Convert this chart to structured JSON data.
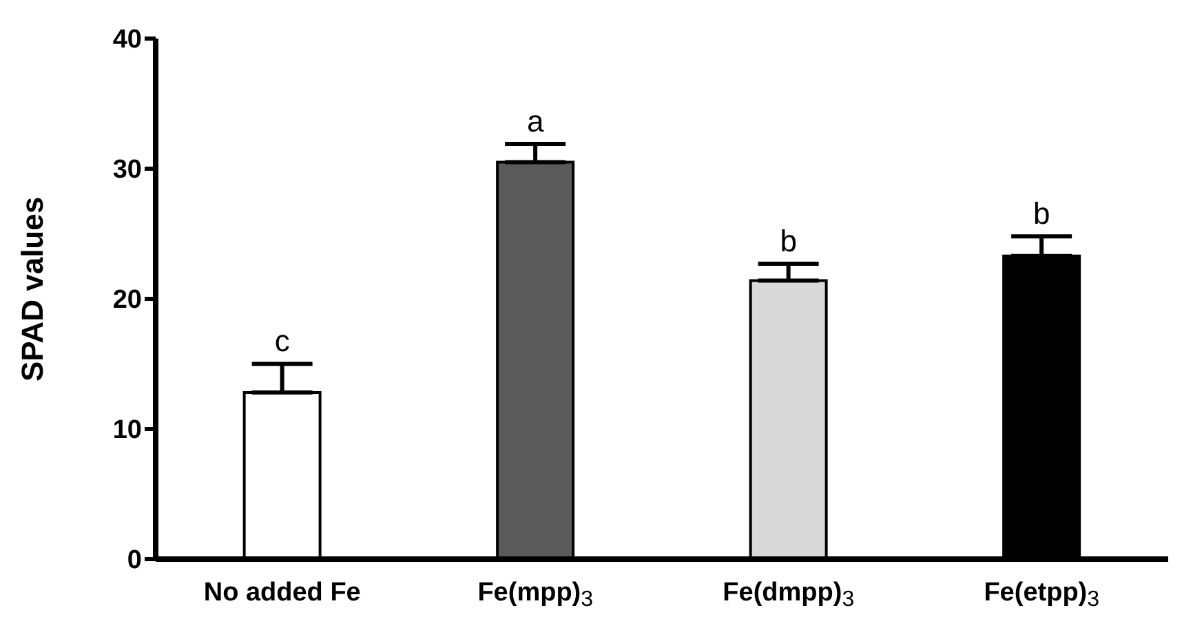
{
  "chart_data": {
    "type": "bar",
    "ylabel": "SPAD values",
    "categories": [
      "No added Fe",
      "Fe(mpp)$_{3}$",
      "Fe(dmpp)$_{3}$",
      "Fe(etpp)$_{3}$"
    ],
    "values": [
      12.8,
      30.5,
      21.4,
      23.3
    ],
    "colors": [
      "#ffffff",
      "#5a5a5a",
      "#d9d9d9",
      "#000000"
    ],
    "errors": [
      [
        12.8,
        15.0
      ],
      [
        30.5,
        31.9
      ],
      [
        21.4,
        22.7
      ],
      [
        23.3,
        24.8
      ]
    ],
    "ylim": [
      0,
      40
    ],
    "yticks": [
      0,
      10,
      20,
      30,
      40
    ],
    "grid": false,
    "legend": false,
    "annotations": [
      "c",
      "a",
      "b",
      "b"
    ]
  }
}
